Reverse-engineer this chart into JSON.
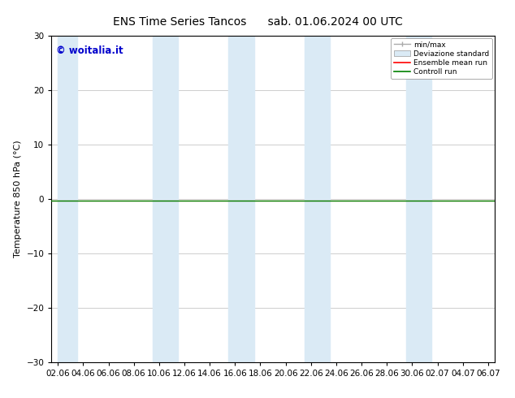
{
  "title_left": "ENS Time Series Tancos",
  "title_right": "sab. 01.06.2024 00 UTC",
  "ylabel": "Temperature 850 hPa (°C)",
  "watermark": "© woitalia.it",
  "ylim": [
    -30,
    30
  ],
  "yticks": [
    -30,
    -20,
    -10,
    0,
    10,
    20,
    30
  ],
  "x_labels": [
    "02.06",
    "04.06",
    "06.06",
    "08.06",
    "10.06",
    "12.06",
    "14.06",
    "16.06",
    "18.06",
    "20.06",
    "22.06",
    "24.06",
    "26.06",
    "28.06",
    "30.06",
    "02.07",
    "04.07",
    "06.07"
  ],
  "x_positions": [
    0,
    2,
    4,
    6,
    8,
    10,
    12,
    14,
    16,
    18,
    20,
    22,
    24,
    26,
    28,
    30,
    32,
    34
  ],
  "shaded_bands": [
    {
      "x_start": 0,
      "x_end": 1.5
    },
    {
      "x_start": 7.5,
      "x_end": 9.5
    },
    {
      "x_start": 13.5,
      "x_end": 15.5
    },
    {
      "x_start": 19.5,
      "x_end": 21.5
    },
    {
      "x_start": 27.5,
      "x_end": 29.5
    }
  ],
  "shaded_color": "#daeaf5",
  "ensemble_mean_color": "#ff0000",
  "control_run_color": "#008000",
  "minmax_color": "#aaaaaa",
  "zero_line_value": -0.3,
  "background_color": "#ffffff",
  "title_fontsize": 10,
  "axis_label_fontsize": 8,
  "tick_fontsize": 7.5,
  "watermark_color": "#0000cc",
  "xlim_min": -0.5,
  "xlim_max": 34.5
}
